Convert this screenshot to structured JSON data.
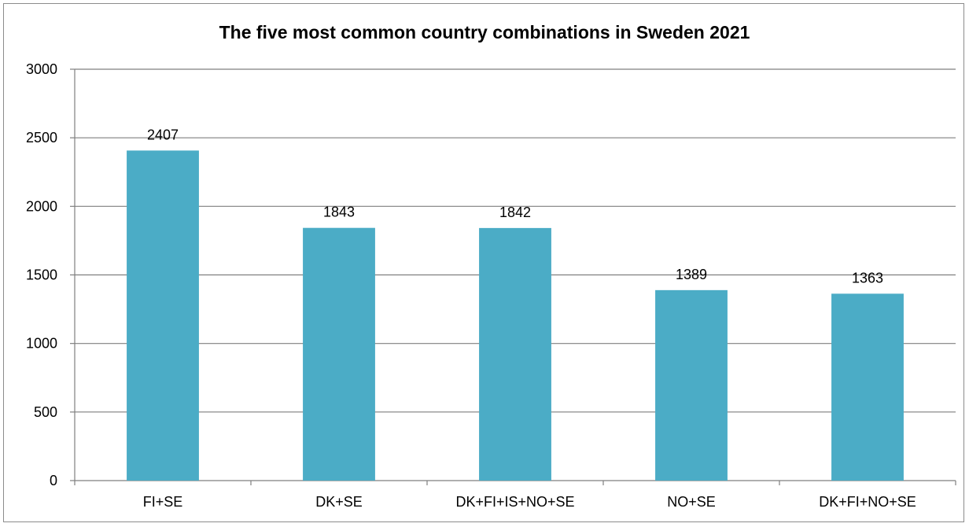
{
  "chart_data": {
    "type": "bar",
    "title": "The five most common country combinations in Sweden 2021",
    "categories": [
      "FI+SE",
      "DK+SE",
      "DK+FI+IS+NO+SE",
      "NO+SE",
      "DK+FI+NO+SE"
    ],
    "values": [
      2407,
      1843,
      1842,
      1389,
      1363
    ],
    "data_labels": [
      "2407",
      "1843",
      "1842",
      "1389",
      "1363"
    ],
    "ylim": [
      0,
      3000
    ],
    "yticks": [
      0,
      500,
      1000,
      1500,
      2000,
      2500,
      3000
    ],
    "grid": true,
    "legend": "none",
    "bar_color": "#4bacc6",
    "grid_color": "#7f7f7f"
  }
}
